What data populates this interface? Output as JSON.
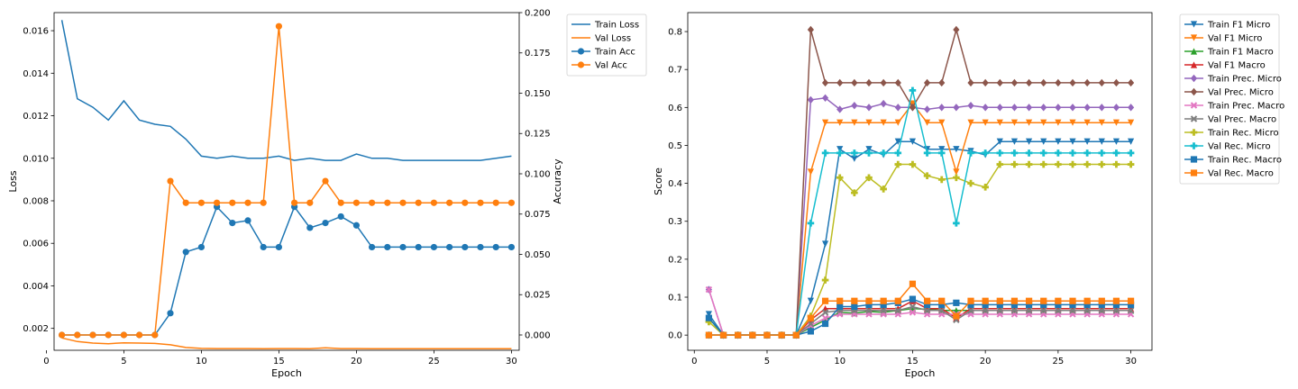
{
  "chart_data": [
    {
      "type": "line",
      "xlabel": "Epoch",
      "ylabel": "Loss",
      "y2label": "Accuracy",
      "x": [
        1,
        2,
        3,
        4,
        5,
        6,
        7,
        8,
        9,
        10,
        11,
        12,
        13,
        14,
        15,
        16,
        17,
        18,
        19,
        20,
        21,
        22,
        23,
        24,
        25,
        26,
        27,
        28,
        29,
        30
      ],
      "xlim": [
        0.5,
        30.5
      ],
      "xticks": [
        0,
        5,
        10,
        15,
        20,
        25,
        30
      ],
      "ylim": [
        0.00097,
        0.01685
      ],
      "yticks": [
        0.002,
        0.004,
        0.006,
        0.008,
        0.01,
        0.012,
        0.014,
        0.016
      ],
      "ytick_labels": [
        "0.002",
        "0.004",
        "0.006",
        "0.008",
        "0.010",
        "0.012",
        "0.014",
        "0.016"
      ],
      "y2lim": [
        -0.0095,
        0.2
      ],
      "y2ticks": [
        0,
        0.025,
        0.05,
        0.075,
        0.1,
        0.125,
        0.15,
        0.175,
        0.2
      ],
      "y2tick_labels": [
        "0.000",
        "0.025",
        "0.050",
        "0.075",
        "0.100",
        "0.125",
        "0.150",
        "0.175",
        "0.200"
      ],
      "grid": false,
      "legend_position": "outside-top-right",
      "series": [
        {
          "name": "Train Loss",
          "axis": "left",
          "color": "#1f77b4",
          "marker": "none",
          "values": [
            0.0165,
            0.0128,
            0.0124,
            0.0118,
            0.0127,
            0.0118,
            0.0116,
            0.0115,
            0.0109,
            0.0101,
            0.01,
            0.0101,
            0.01,
            0.01,
            0.0101,
            0.0099,
            0.01,
            0.0099,
            0.0099,
            0.0102,
            0.01,
            0.01,
            0.0099,
            0.0099,
            0.0099,
            0.0099,
            0.0099,
            0.0099,
            0.01,
            0.0101
          ]
        },
        {
          "name": "Val Loss",
          "axis": "left",
          "color": "#ff7f0e",
          "marker": "none",
          "values": [
            0.00155,
            0.00138,
            0.00131,
            0.00128,
            0.00132,
            0.00131,
            0.00129,
            0.00123,
            0.0011,
            0.00106,
            0.00105,
            0.00105,
            0.00105,
            0.00104,
            0.00105,
            0.00105,
            0.00104,
            0.00109,
            0.00105,
            0.00105,
            0.00104,
            0.00104,
            0.00104,
            0.00104,
            0.00104,
            0.00104,
            0.00104,
            0.00104,
            0.00104,
            0.00104
          ]
        },
        {
          "name": "Train Acc",
          "axis": "right",
          "color": "#1f77b4",
          "marker": "o",
          "values": [
            0,
            0,
            0,
            0,
            0,
            0,
            0,
            0.0135,
            0.0515,
            0.0545,
            0.0795,
            0.0695,
            0.071,
            0.0545,
            0.0545,
            0.0795,
            0.0665,
            0.0695,
            0.0735,
            0.068,
            0.0545,
            0.0545,
            0.0545,
            0.0545,
            0.0545,
            0.0545,
            0.0545,
            0.0545,
            0.0545,
            0.0545
          ]
        },
        {
          "name": "Val Acc",
          "axis": "right",
          "color": "#ff7f0e",
          "marker": "o",
          "values": [
            0,
            0,
            0,
            0,
            0,
            0,
            0,
            0.0955,
            0.082,
            0.082,
            0.082,
            0.082,
            0.082,
            0.082,
            0.1915,
            0.082,
            0.082,
            0.0955,
            0.082,
            0.082,
            0.082,
            0.082,
            0.082,
            0.082,
            0.082,
            0.082,
            0.082,
            0.082,
            0.082,
            0.082
          ]
        }
      ]
    },
    {
      "type": "line",
      "xlabel": "Epoch",
      "ylabel": "Score",
      "x": [
        1,
        2,
        3,
        4,
        5,
        6,
        7,
        8,
        9,
        10,
        11,
        12,
        13,
        14,
        15,
        16,
        17,
        18,
        19,
        20,
        21,
        22,
        23,
        24,
        25,
        26,
        27,
        28,
        29,
        30
      ],
      "xlim": [
        -0.45,
        31.45
      ],
      "xticks": [
        0,
        5,
        10,
        15,
        20,
        25,
        30
      ],
      "ylim": [
        -0.04,
        0.85
      ],
      "yticks": [
        0,
        0.1,
        0.2,
        0.3,
        0.4,
        0.5,
        0.6,
        0.7,
        0.8
      ],
      "ytick_labels": [
        "0.0",
        "0.1",
        "0.2",
        "0.3",
        "0.4",
        "0.5",
        "0.6",
        "0.7",
        "0.8"
      ],
      "grid": false,
      "legend_position": "outside-top-right",
      "series": [
        {
          "name": "Train F1 Micro",
          "color": "#1f77b4",
          "marker": "v",
          "values": [
            0.055,
            0,
            0,
            0,
            0,
            0,
            0,
            0.09,
            0.24,
            0.49,
            0.465,
            0.49,
            0.475,
            0.51,
            0.51,
            0.49,
            0.49,
            0.49,
            0.485,
            0.475,
            0.51,
            0.51,
            0.51,
            0.51,
            0.51,
            0.51,
            0.51,
            0.51,
            0.51,
            0.51
          ]
        },
        {
          "name": "Val F1 Micro",
          "color": "#ff7f0e",
          "marker": "v",
          "values": [
            0,
            0,
            0,
            0,
            0,
            0,
            0,
            0.43,
            0.56,
            0.56,
            0.56,
            0.56,
            0.56,
            0.56,
            0.61,
            0.56,
            0.56,
            0.43,
            0.56,
            0.56,
            0.56,
            0.56,
            0.56,
            0.56,
            0.56,
            0.56,
            0.56,
            0.56,
            0.56,
            0.56
          ]
        },
        {
          "name": "Train F1 Macro",
          "color": "#2ca02c",
          "marker": "^",
          "values": [
            0.045,
            0,
            0,
            0,
            0,
            0,
            0,
            0.02,
            0.04,
            0.06,
            0.058,
            0.062,
            0.06,
            0.065,
            0.07,
            0.068,
            0.065,
            0.065,
            0.065,
            0.065,
            0.065,
            0.065,
            0.065,
            0.065,
            0.065,
            0.065,
            0.065,
            0.065,
            0.065,
            0.065
          ]
        },
        {
          "name": "Val F1 Macro",
          "color": "#d62728",
          "marker": "^",
          "values": [
            0,
            0,
            0,
            0,
            0,
            0,
            0,
            0.04,
            0.07,
            0.07,
            0.07,
            0.07,
            0.07,
            0.07,
            0.09,
            0.07,
            0.07,
            0.045,
            0.07,
            0.07,
            0.07,
            0.07,
            0.07,
            0.07,
            0.07,
            0.07,
            0.07,
            0.07,
            0.07,
            0.07
          ]
        },
        {
          "name": "Train Prec. Micro",
          "color": "#9467bd",
          "marker": "D",
          "values": [
            0.12,
            0,
            0,
            0,
            0,
            0,
            0,
            0.62,
            0.625,
            0.595,
            0.605,
            0.6,
            0.61,
            0.6,
            0.6,
            0.595,
            0.6,
            0.6,
            0.605,
            0.6,
            0.6,
            0.6,
            0.6,
            0.6,
            0.6,
            0.6,
            0.6,
            0.6,
            0.6,
            0.6
          ]
        },
        {
          "name": "Val Prec. Micro",
          "color": "#8c564b",
          "marker": "D",
          "values": [
            0,
            0,
            0,
            0,
            0,
            0,
            0,
            0.805,
            0.665,
            0.665,
            0.665,
            0.665,
            0.665,
            0.665,
            0.6,
            0.665,
            0.665,
            0.805,
            0.665,
            0.665,
            0.665,
            0.665,
            0.665,
            0.665,
            0.665,
            0.665,
            0.665,
            0.665,
            0.665,
            0.665
          ]
        },
        {
          "name": "Train Prec. Macro",
          "color": "#e377c2",
          "marker": "x",
          "values": [
            0.12,
            0,
            0,
            0,
            0,
            0,
            0,
            0.025,
            0.045,
            0.055,
            0.055,
            0.055,
            0.055,
            0.055,
            0.06,
            0.055,
            0.055,
            0.055,
            0.055,
            0.055,
            0.055,
            0.055,
            0.055,
            0.055,
            0.055,
            0.055,
            0.055,
            0.055,
            0.055,
            0.055
          ]
        },
        {
          "name": "Val Prec. Macro",
          "color": "#7f7f7f",
          "marker": "x",
          "values": [
            0,
            0,
            0,
            0,
            0,
            0,
            0,
            0.03,
            0.06,
            0.065,
            0.065,
            0.065,
            0.065,
            0.065,
            0.075,
            0.065,
            0.065,
            0.04,
            0.065,
            0.065,
            0.065,
            0.065,
            0.065,
            0.065,
            0.065,
            0.065,
            0.065,
            0.065,
            0.065,
            0.065
          ]
        },
        {
          "name": "Train Rec. Micro",
          "color": "#bcbd22",
          "marker": "P",
          "values": [
            0.035,
            0,
            0,
            0,
            0,
            0,
            0,
            0.05,
            0.145,
            0.415,
            0.375,
            0.415,
            0.385,
            0.45,
            0.45,
            0.42,
            0.41,
            0.415,
            0.4,
            0.39,
            0.45,
            0.45,
            0.45,
            0.45,
            0.45,
            0.45,
            0.45,
            0.45,
            0.45,
            0.45
          ]
        },
        {
          "name": "Val Rec. Micro",
          "color": "#17becf",
          "marker": "P",
          "values": [
            0,
            0,
            0,
            0,
            0,
            0,
            0,
            0.295,
            0.48,
            0.48,
            0.48,
            0.48,
            0.48,
            0.48,
            0.645,
            0.48,
            0.48,
            0.295,
            0.48,
            0.48,
            0.48,
            0.48,
            0.48,
            0.48,
            0.48,
            0.48,
            0.48,
            0.48,
            0.48,
            0.48
          ]
        },
        {
          "name": "Train Rec. Macro",
          "color": "#1f77b4",
          "marker": "s",
          "values": [
            0.045,
            0,
            0,
            0,
            0,
            0,
            0,
            0.01,
            0.03,
            0.075,
            0.075,
            0.08,
            0.08,
            0.085,
            0.095,
            0.08,
            0.08,
            0.085,
            0.08,
            0.08,
            0.08,
            0.08,
            0.08,
            0.08,
            0.08,
            0.08,
            0.08,
            0.08,
            0.08,
            0.08
          ]
        },
        {
          "name": "Val Rec. Macro",
          "color": "#ff7f0e",
          "marker": "s",
          "values": [
            0,
            0,
            0,
            0,
            0,
            0,
            0,
            0.045,
            0.09,
            0.09,
            0.09,
            0.09,
            0.09,
            0.09,
            0.135,
            0.09,
            0.09,
            0.05,
            0.09,
            0.09,
            0.09,
            0.09,
            0.09,
            0.09,
            0.09,
            0.09,
            0.09,
            0.09,
            0.09,
            0.09
          ]
        }
      ]
    }
  ]
}
